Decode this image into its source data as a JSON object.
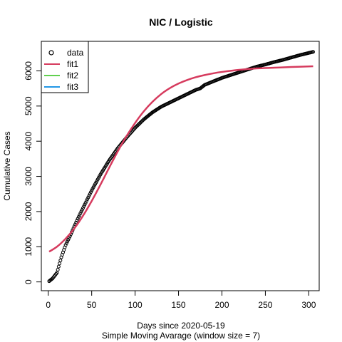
{
  "chart_data": {
    "type": "line",
    "title": "NIC / Logistic",
    "xlabel": "Days since 2020-05-19",
    "subtitle": "Simple Moving Avarage (window size = 7)",
    "ylabel": "Cumulative Cases",
    "xlim": [
      -8,
      312
    ],
    "ylim": [
      -250,
      6840
    ],
    "xticks": [
      0,
      50,
      100,
      150,
      200,
      250,
      300
    ],
    "yticks": [
      0,
      1000,
      2000,
      3000,
      4000,
      5000,
      6000
    ],
    "legend_position": "top-left",
    "legend": [
      "data",
      "fit1",
      "fit2",
      "fit3"
    ],
    "series": [
      {
        "name": "data",
        "style": "points",
        "color": "#000000",
        "x": [
          1,
          5,
          10,
          15,
          20,
          25,
          30,
          35,
          40,
          45,
          50,
          60,
          70,
          80,
          90,
          100,
          110,
          120,
          130,
          140,
          150,
          160,
          170,
          175,
          180,
          190,
          200,
          210,
          220,
          230,
          240,
          250,
          260,
          270,
          280,
          290,
          300,
          305
        ],
        "y": [
          20,
          100,
          260,
          700,
          1050,
          1300,
          1580,
          1850,
          2100,
          2350,
          2600,
          3050,
          3450,
          3800,
          4100,
          4380,
          4620,
          4820,
          4980,
          5100,
          5220,
          5340,
          5460,
          5500,
          5600,
          5700,
          5800,
          5880,
          5960,
          6040,
          6120,
          6180,
          6250,
          6310,
          6380,
          6450,
          6510,
          6540
        ]
      },
      {
        "name": "fit1",
        "style": "line",
        "color": "#D63B5E",
        "x": [
          1,
          10,
          20,
          30,
          40,
          50,
          60,
          70,
          80,
          90,
          100,
          110,
          120,
          130,
          140,
          150,
          160,
          170,
          180,
          190,
          200,
          220,
          240,
          260,
          280,
          305
        ],
        "y": [
          860,
          1000,
          1230,
          1520,
          1880,
          2300,
          2760,
          3240,
          3710,
          4140,
          4520,
          4850,
          5120,
          5340,
          5510,
          5640,
          5740,
          5820,
          5880,
          5930,
          5970,
          6030,
          6070,
          6090,
          6110,
          6130
        ]
      },
      {
        "name": "fit2",
        "style": "line",
        "color": "#61D04F",
        "x": [],
        "y": []
      },
      {
        "name": "fit3",
        "style": "line",
        "color": "#2297E6",
        "x": [],
        "y": []
      }
    ]
  }
}
